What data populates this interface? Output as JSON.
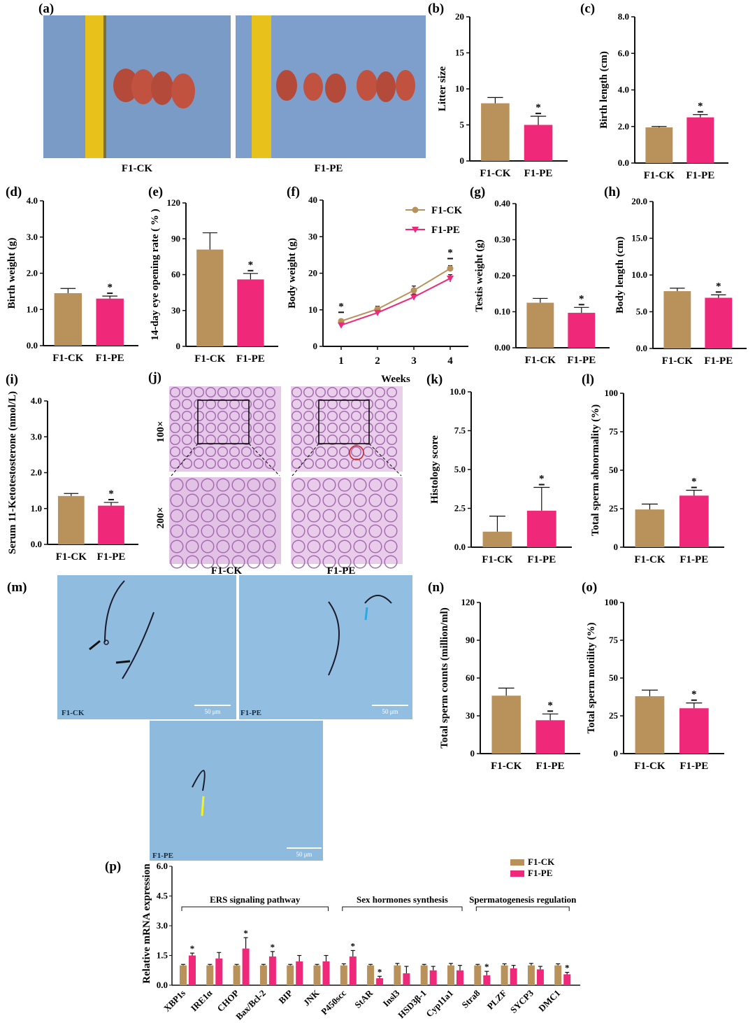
{
  "colors": {
    "ck": "#B8925A",
    "pe": "#F0287A",
    "photo_bg": "#7B9BC7",
    "micro_bg": "#8FBCDF",
    "histo_bg": "#E6C8E8"
  },
  "panels": {
    "a": {
      "label": "(a)",
      "captions": [
        "F1-CK",
        "F1-PE"
      ]
    },
    "j": {
      "label": "(j)",
      "row_labels": [
        "100×",
        "200×"
      ],
      "captions": [
        "F1-CK",
        "F1-PE"
      ]
    },
    "m": {
      "label": "(m)",
      "captions": [
        "F1-CK",
        "F1-PE",
        "F1-PE"
      ],
      "scale_text": "50 μm"
    }
  },
  "chart_data": [
    {
      "id": "b",
      "label": "(b)",
      "type": "bar",
      "categories": [
        "F1-CK",
        "F1-PE"
      ],
      "values": [
        8.0,
        5.0
      ],
      "errors": [
        0.8,
        1.2
      ],
      "sig": [
        false,
        true
      ],
      "ylabel": "Litter size",
      "ylim": [
        0,
        20
      ],
      "ticks": [
        "0",
        "5",
        "10",
        "15",
        "20"
      ]
    },
    {
      "id": "c",
      "label": "(c)",
      "type": "bar",
      "categories": [
        "F1-CK",
        "F1-PE"
      ],
      "values": [
        1.95,
        2.5
      ],
      "errors": [
        0.05,
        0.15
      ],
      "sig": [
        false,
        true
      ],
      "ylabel": "Birth length (cm)",
      "ylim": [
        0,
        8
      ],
      "ticks": [
        "0.0",
        "2.0",
        "4.0",
        "6.0",
        "8.0"
      ]
    },
    {
      "id": "d",
      "label": "(d)",
      "type": "bar",
      "categories": [
        "F1-CK",
        "F1-PE"
      ],
      "values": [
        1.45,
        1.3
      ],
      "errors": [
        0.13,
        0.07
      ],
      "sig": [
        false,
        true
      ],
      "ylabel": "Birth weight (g)",
      "ylim": [
        0,
        4
      ],
      "ticks": [
        "0.0",
        "1.0",
        "2.0",
        "3.0",
        "4.0"
      ]
    },
    {
      "id": "e",
      "label": "(e)",
      "type": "bar",
      "categories": [
        "F1-CK",
        "F1-PE"
      ],
      "values": [
        81,
        56
      ],
      "errors": [
        14,
        5
      ],
      "sig": [
        false,
        true
      ],
      "ylabel": "14-day eye opening rate ( % )",
      "ylim": [
        0,
        120
      ],
      "ticks": [
        "0",
        "30",
        "60",
        "90",
        "120"
      ]
    },
    {
      "id": "f",
      "label": "(f)",
      "type": "line",
      "x": [
        "1",
        "2",
        "3",
        "4"
      ],
      "xlabel": "Weeks",
      "ylabel": "Body weight (g)",
      "ylim": [
        0,
        40
      ],
      "ticks": [
        "0",
        "10",
        "20",
        "30",
        "40"
      ],
      "series": [
        {
          "name": "F1-CK",
          "values": [
            6.9,
            10.2,
            15.3,
            21.3
          ],
          "errors": [
            0.5,
            0.8,
            1.2,
            0.8
          ]
        },
        {
          "name": "F1-PE",
          "values": [
            5.8,
            9.2,
            13.5,
            18.6
          ],
          "errors": [
            0.4,
            0.6,
            0.8,
            1.0
          ]
        }
      ],
      "sig_x": [
        "1",
        "4"
      ]
    },
    {
      "id": "g",
      "label": "(g)",
      "type": "bar",
      "categories": [
        "F1-CK",
        "F1-PE"
      ],
      "values": [
        0.125,
        0.097
      ],
      "errors": [
        0.012,
        0.015
      ],
      "sig": [
        false,
        true
      ],
      "ylabel": "Testis weight (g)",
      "ylim": [
        0,
        0.4
      ],
      "ticks": [
        "0.00",
        "0.10",
        "0.20",
        "0.30",
        "0.40"
      ]
    },
    {
      "id": "h",
      "label": "(h)",
      "type": "bar",
      "categories": [
        "F1-CK",
        "F1-PE"
      ],
      "values": [
        7.8,
        6.9
      ],
      "errors": [
        0.4,
        0.4
      ],
      "sig": [
        false,
        true
      ],
      "ylabel": "Body length (cm)",
      "ylim": [
        0,
        20
      ],
      "ticks": [
        "0.0",
        "5.0",
        "10.0",
        "15.0",
        "20.0"
      ]
    },
    {
      "id": "i",
      "label": "(i)",
      "type": "bar",
      "categories": [
        "F1-CK",
        "F1-PE"
      ],
      "values": [
        1.35,
        1.08
      ],
      "errors": [
        0.07,
        0.09
      ],
      "sig": [
        false,
        true
      ],
      "ylabel": "Serum 11-Ketotestosterone (nmol/L)",
      "ylim": [
        0,
        4
      ],
      "ticks": [
        "0.0",
        "1.0",
        "2.0",
        "3.0",
        "4.0"
      ]
    },
    {
      "id": "k",
      "label": "(k)",
      "type": "bar",
      "categories": [
        "F1-CK",
        "F1-PE"
      ],
      "values": [
        1.0,
        2.35
      ],
      "errors": [
        1.0,
        1.5
      ],
      "sig": [
        false,
        true
      ],
      "ylabel": "Histology score",
      "ylim": [
        0,
        10
      ],
      "ticks": [
        "0.0",
        "2.5",
        "5.0",
        "7.5",
        "10.0"
      ]
    },
    {
      "id": "l",
      "label": "(l)",
      "type": "bar",
      "categories": [
        "F1-CK",
        "F1-PE"
      ],
      "values": [
        24.5,
        33.5
      ],
      "errors": [
        3.5,
        3.5
      ],
      "sig": [
        false,
        true
      ],
      "ylabel": "Total sperm abnormality (%)",
      "ylim": [
        0,
        100
      ],
      "ticks": [
        "0",
        "25",
        "50",
        "75",
        "100"
      ]
    },
    {
      "id": "n",
      "label": "(n)",
      "type": "bar",
      "categories": [
        "F1-CK",
        "F1-PE"
      ],
      "values": [
        46,
        26.5
      ],
      "errors": [
        6,
        5
      ],
      "sig": [
        false,
        true
      ],
      "ylabel": "Total sperm counts (million/ml)",
      "ylim": [
        0,
        120
      ],
      "ticks": [
        "0",
        "30",
        "60",
        "90",
        "120"
      ]
    },
    {
      "id": "o",
      "label": "(o)",
      "type": "bar",
      "categories": [
        "F1-CK",
        "F1-PE"
      ],
      "values": [
        38,
        30
      ],
      "errors": [
        4,
        3.5
      ],
      "sig": [
        false,
        true
      ],
      "ylabel": "Total sperm motility (%)",
      "ylim": [
        0,
        100
      ],
      "ticks": [
        "0",
        "25",
        "50",
        "75",
        "100"
      ]
    },
    {
      "id": "p",
      "label": "(p)",
      "type": "bar",
      "categories": [
        "XBP1s",
        "IRE1α",
        "CHOP",
        "Bax/Bcl-2",
        "BIP",
        "JNK",
        "P450scc",
        "StAR",
        "Insl3",
        "HSD3β-1",
        "Cyp11a1",
        "Stra8",
        "PLZF",
        "SYCP3",
        "DMC1"
      ],
      "series": [
        {
          "name": "F1-CK",
          "values": [
            1.0,
            1.0,
            1.0,
            1.0,
            1.0,
            1.0,
            1.0,
            1.0,
            1.0,
            1.0,
            1.0,
            1.0,
            1.0,
            1.0,
            1.0
          ],
          "errors": [
            0.05,
            0.05,
            0.05,
            0.05,
            0.05,
            0.05,
            0.08,
            0.05,
            0.1,
            0.05,
            0.1,
            0.05,
            0.08,
            0.1,
            0.08
          ]
        },
        {
          "name": "F1-PE",
          "values": [
            1.5,
            1.35,
            1.85,
            1.45,
            1.2,
            1.2,
            1.45,
            0.35,
            0.6,
            0.75,
            0.75,
            0.5,
            0.85,
            0.8,
            0.55
          ],
          "errors": [
            0.12,
            0.3,
            0.55,
            0.25,
            0.3,
            0.3,
            0.3,
            0.1,
            0.35,
            0.2,
            0.25,
            0.2,
            0.15,
            0.15,
            0.1
          ]
        }
      ],
      "sig": [
        true,
        false,
        true,
        true,
        false,
        false,
        true,
        true,
        false,
        false,
        false,
        true,
        false,
        false,
        true
      ],
      "ylabel": "Relative mRNA expression",
      "ylim": [
        0,
        6
      ],
      "ticks": [
        "0.0",
        "1.5",
        "3.0",
        "4.5",
        "6.0"
      ],
      "groups": [
        "ERS signaling pathway",
        "Sex hormones synthesis",
        "Spermatogenesis regulation"
      ],
      "legend": "top-right"
    }
  ]
}
